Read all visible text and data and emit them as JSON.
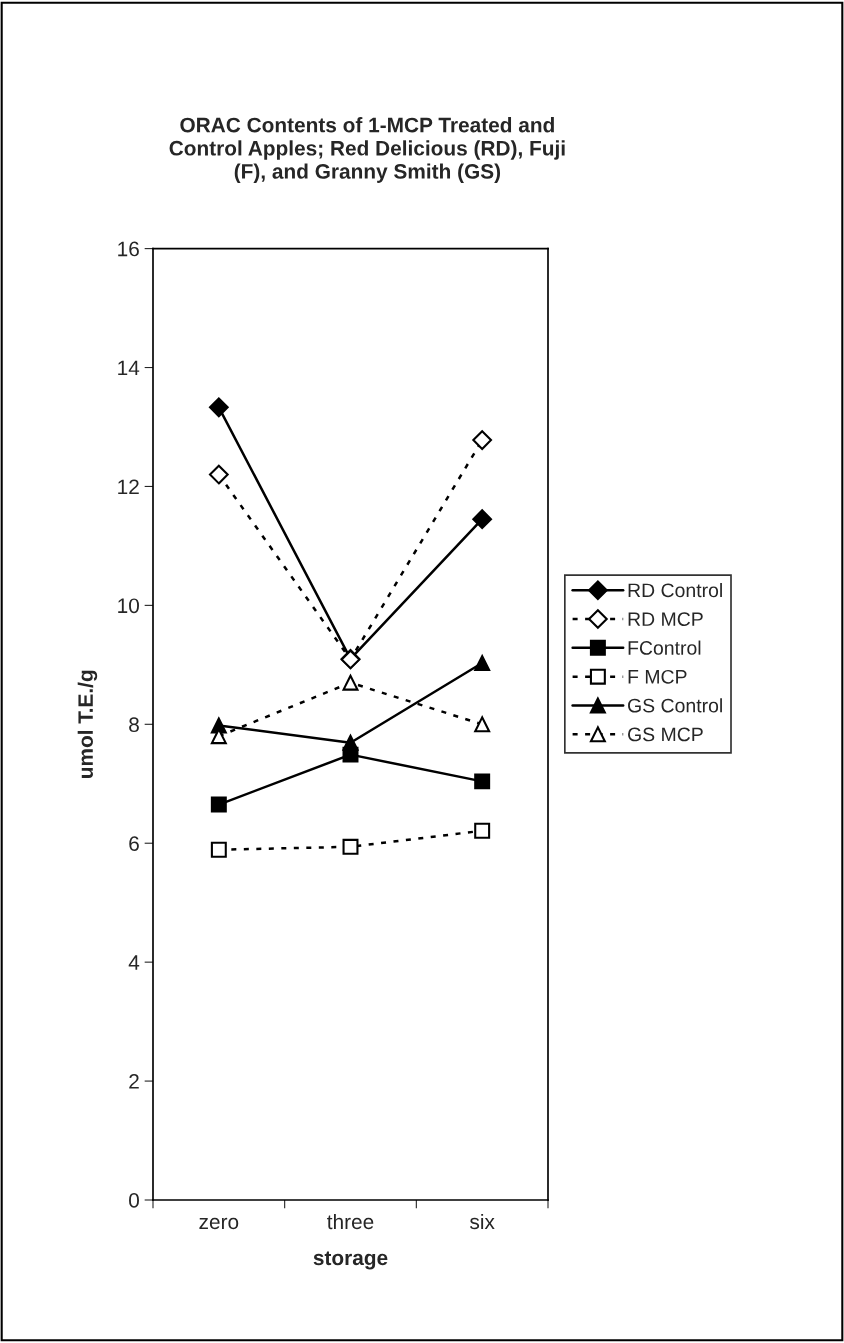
{
  "chart_data": {
    "type": "line",
    "title": "ORAC Contents of 1-MCP Treated and\nControl Apples; Red Delicious (RD), Fuji\n(F), and Granny Smith (GS)",
    "xlabel": "storage",
    "ylabel": "umol T.E./g",
    "categories": [
      "zero",
      "three",
      "six"
    ],
    "ylim": [
      0,
      16
    ],
    "yticks": [
      0,
      2,
      4,
      6,
      8,
      10,
      12,
      14,
      16
    ],
    "grid": false,
    "legend": "right",
    "series": [
      {
        "name": "RD Control",
        "color": "#000000",
        "marker": "diamond",
        "line_style": "solid",
        "values": [
          13.33,
          9.1,
          11.45
        ]
      },
      {
        "name": "RD MCP",
        "color": "#000000",
        "marker": "diamond",
        "line_style": "dotted",
        "values": [
          12.2,
          9.09,
          12.78
        ]
      },
      {
        "name": "FControl",
        "color": "#000000",
        "marker": "square",
        "line_style": "solid",
        "values": [
          6.65,
          7.49,
          7.04
        ]
      },
      {
        "name": "F MCP",
        "color": "#000000",
        "marker": "square",
        "line_style": "dotted",
        "values": [
          5.89,
          5.94,
          6.21
        ]
      },
      {
        "name": "GS Control",
        "color": "#000000",
        "marker": "triangle",
        "line_style": "solid",
        "values": [
          7.98,
          7.69,
          9.03
        ]
      },
      {
        "name": "GS MCP",
        "color": "#000000",
        "marker": "triangle",
        "line_style": "dotted",
        "values": [
          7.8,
          8.7,
          8.0
        ]
      }
    ]
  }
}
